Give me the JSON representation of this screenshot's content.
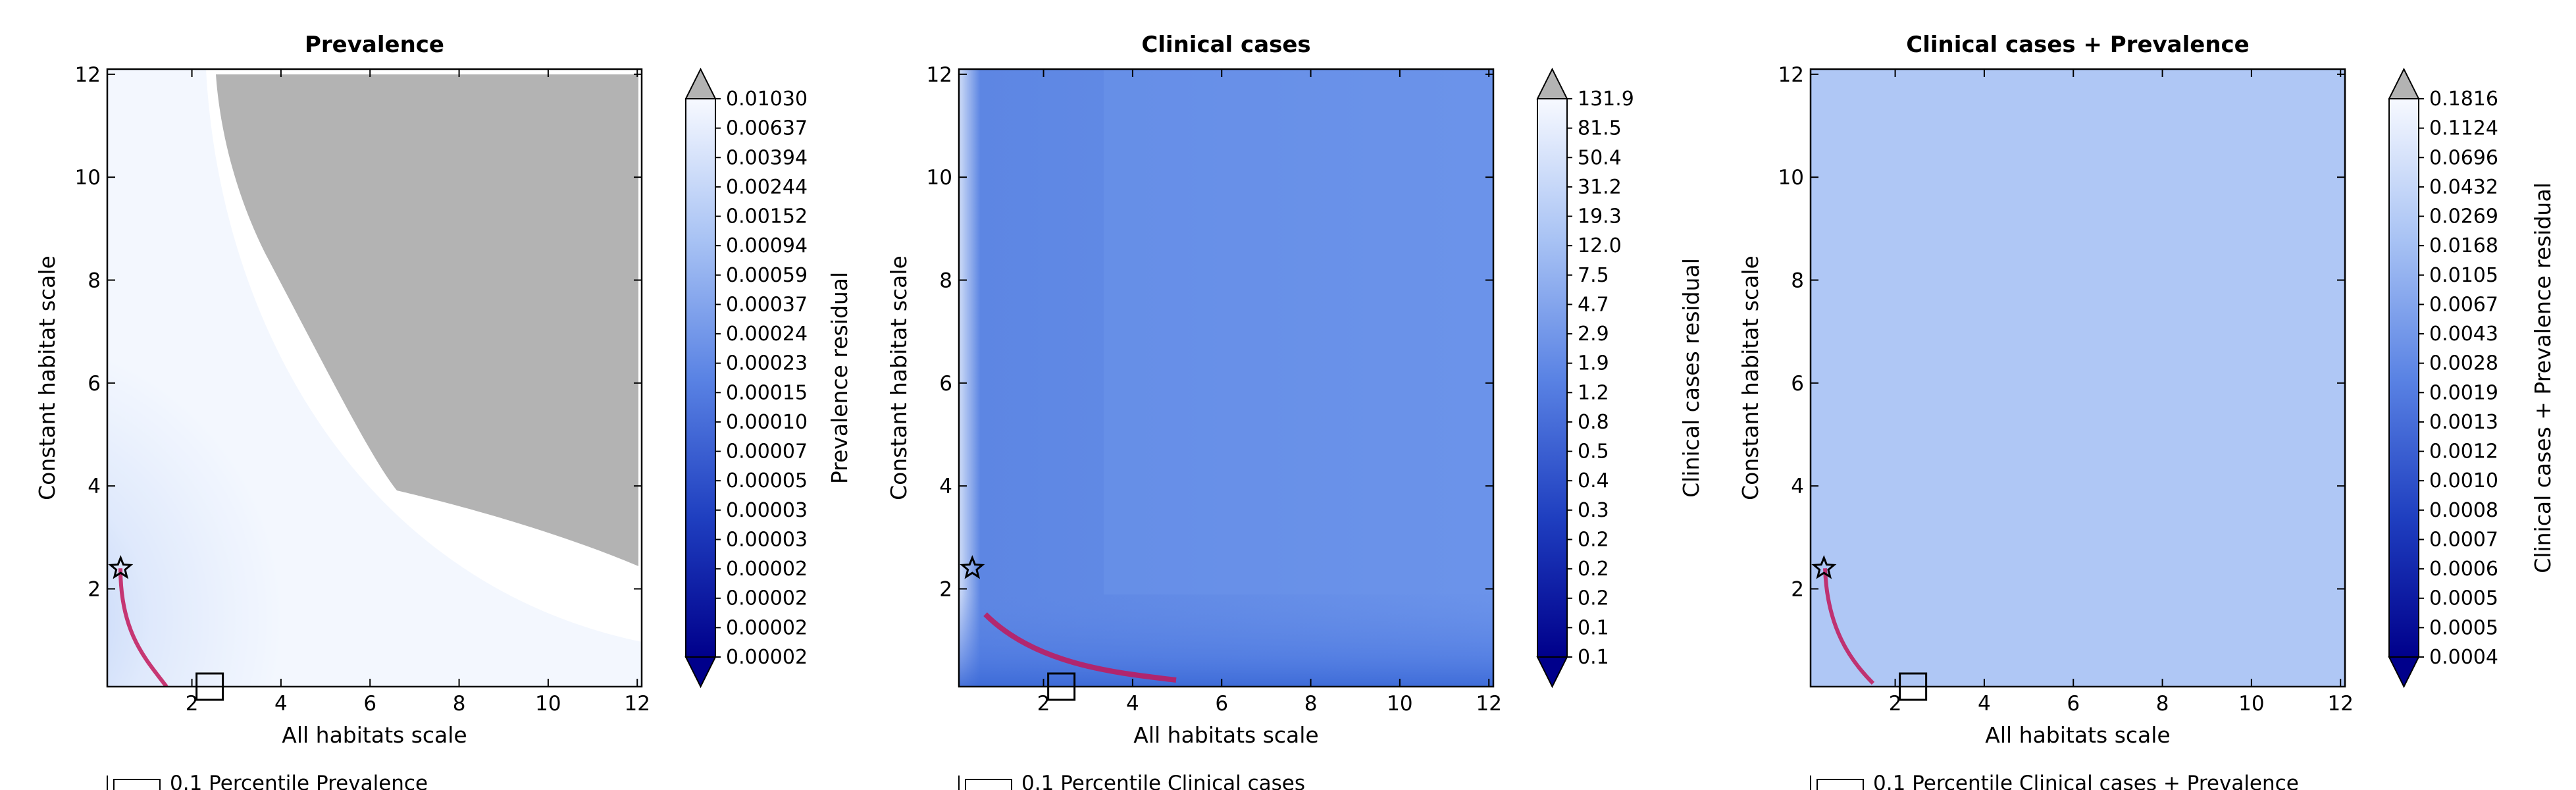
{
  "chart_data": [
    {
      "type": "heatmap",
      "title": "Prevalence",
      "xlabel": "All habitats scale",
      "ylabel": "Constant habitat scale",
      "xlim": [
        0.1,
        12.1
      ],
      "ylim": [
        0.1,
        12.1
      ],
      "x_ticks": [
        "2",
        "4",
        "6",
        "8",
        "10",
        "12"
      ],
      "y_ticks": [
        "2",
        "4",
        "6",
        "8",
        "10",
        "12"
      ],
      "colorbar_label": "Prevalence residual",
      "colorbar_ticks": [
        "0.01030",
        "0.00637",
        "0.00394",
        "0.00244",
        "0.00152",
        "0.00094",
        "0.00059",
        "0.00037",
        "0.00024",
        "0.00023",
        "0.00015",
        "0.00010",
        "0.00007",
        "0.00005",
        "0.00003",
        "0.00003",
        "0.00002",
        "0.00002",
        "0.00002",
        "0.00002"
      ],
      "style": "prev",
      "star": [
        0.4,
        2.4
      ],
      "square": [
        2.4,
        0.1
      ],
      "legend_entry": "0.1 Percentile Prevalence"
    },
    {
      "type": "heatmap",
      "title": "Clinical cases",
      "xlabel": "All habitats scale",
      "ylabel": "Constant habitat scale",
      "xlim": [
        0.1,
        12.1
      ],
      "ylim": [
        0.1,
        12.1
      ],
      "x_ticks": [
        "2",
        "4",
        "6",
        "8",
        "10",
        "12"
      ],
      "y_ticks": [
        "2",
        "4",
        "6",
        "8",
        "10",
        "12"
      ],
      "colorbar_label": "Clinical cases residual",
      "colorbar_ticks": [
        "131.9",
        "81.5",
        "50.4",
        "31.2",
        "19.3",
        "12.0",
        "7.5",
        "4.7",
        "2.9",
        "1.9",
        "1.2",
        "0.8",
        "0.5",
        "0.4",
        "0.3",
        "0.2",
        "0.2",
        "0.2",
        "0.1",
        "0.1"
      ],
      "style": "clin",
      "star": [
        0.4,
        2.4
      ],
      "square": [
        2.4,
        0.1
      ],
      "legend_entry": "0.1 Percentile Clinical cases"
    },
    {
      "type": "heatmap",
      "title": "Clinical cases + Prevalence",
      "xlabel": "All habitats scale",
      "ylabel": "Constant habitat scale",
      "xlim": [
        0.1,
        12.1
      ],
      "ylim": [
        0.1,
        12.1
      ],
      "x_ticks": [
        "2",
        "4",
        "6",
        "8",
        "10",
        "12"
      ],
      "y_ticks": [
        "2",
        "4",
        "6",
        "8",
        "10",
        "12"
      ],
      "colorbar_label": "Clinical cases + Prevalence residual",
      "colorbar_ticks": [
        "0.1816",
        "0.1124",
        "0.0696",
        "0.0432",
        "0.0269",
        "0.0168",
        "0.0105",
        "0.0067",
        "0.0043",
        "0.0028",
        "0.0019",
        "0.0013",
        "0.0012",
        "0.0010",
        "0.0008",
        "0.0007",
        "0.0006",
        "0.0005",
        "0.0005",
        "0.0004"
      ],
      "style": "both",
      "star": [
        0.4,
        2.4
      ],
      "square": [
        2.4,
        0.1
      ],
      "legend_entry": "0.1 Percentile Clinical cases + Prevalence"
    }
  ]
}
